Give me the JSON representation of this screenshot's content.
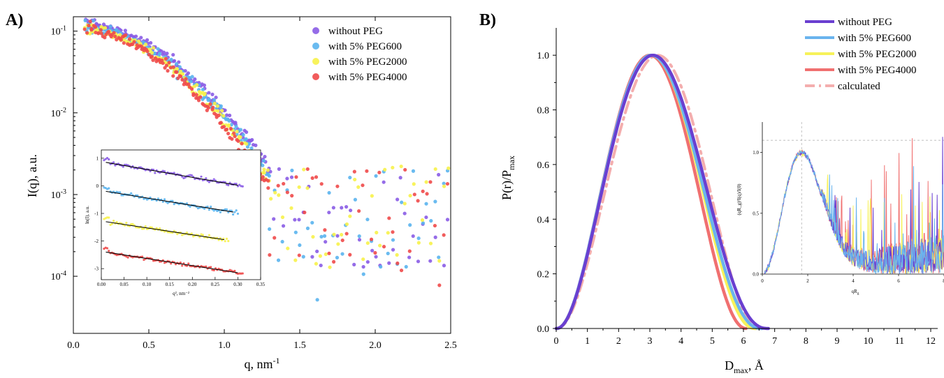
{
  "chart_data": [
    {
      "panel": "A)",
      "type": "scatter",
      "xlabel": "q, nm",
      "xlabel_sup": "-1",
      "ylabel": "I(q), a.u.",
      "xlim": [
        0.0,
        2.5
      ],
      "ylim": [
        2e-05,
        0.15
      ],
      "yscale": "log",
      "xticks": [
        "0.0",
        "0.5",
        "1.0",
        "1.5",
        "2.0",
        "2.5"
      ],
      "yticks": [
        {
          "base": "10",
          "exp": "-1"
        },
        {
          "base": "10",
          "exp": "-2"
        },
        {
          "base": "10",
          "exp": "-3"
        },
        {
          "base": "10",
          "exp": "-4"
        }
      ],
      "legend_position": "top-right",
      "series": [
        {
          "name": "without PEG",
          "color": "#8a5ce6"
        },
        {
          "name": "with 5% PEG600",
          "color": "#5ab4ee"
        },
        {
          "name": "with 5% PEG2000",
          "color": "#f7f24a"
        },
        {
          "name": "with 5% PEG4000",
          "color": "#ef4a4a"
        }
      ],
      "inset": {
        "type": "scatter",
        "xlabel": "q², nm⁻²",
        "ylabel": "ln(I), a.u.",
        "xlim": [
          0.0,
          0.35
        ],
        "ylim": [
          -3.4,
          1.3
        ],
        "xticks": [
          "0.00",
          "0.05",
          "0.10",
          "0.15",
          "0.20",
          "0.25",
          "0.30",
          "0.35"
        ],
        "yticks": [
          "1",
          "0",
          "-1",
          "-2",
          "-3"
        ],
        "fit_lines": [
          {
            "series": "without PEG",
            "x": [
              0.01,
              0.3
            ],
            "y": [
              0.85,
              0.02
            ]
          },
          {
            "series": "with 5% PEG600",
            "x": [
              0.01,
              0.29
            ],
            "y": [
              -0.2,
              -0.95
            ]
          },
          {
            "series": "with 5% PEG2000",
            "x": [
              0.01,
              0.27
            ],
            "y": [
              -1.3,
              -1.95
            ]
          },
          {
            "series": "with 5% PEG4000",
            "x": [
              0.01,
              0.3
            ],
            "y": [
              -2.4,
              -3.15
            ]
          }
        ]
      }
    },
    {
      "panel": "B)",
      "type": "line",
      "xlabel": "D",
      "xlabel_sub": "max",
      "xlabel_unit": ", Å",
      "ylabel": "P(r)/P",
      "ylabel_sub": "max",
      "xlim": [
        0,
        12
      ],
      "ylim": [
        0,
        1.1
      ],
      "xticks": [
        "0",
        "1",
        "2",
        "3",
        "4",
        "5",
        "6",
        "7",
        "8",
        "9",
        "10",
        "11",
        "12"
      ],
      "yticks": [
        "0.0",
        "0.2",
        "0.4",
        "0.6",
        "0.8",
        "1.0"
      ],
      "legend_position": "top-right",
      "series": [
        {
          "name": "without PEG",
          "color": "#6a3fd0",
          "style": "solid",
          "dmax": 6.8,
          "peak": 3.1
        },
        {
          "name": "with 5% PEG600",
          "color": "#6ab4ee",
          "style": "solid",
          "dmax": 6.6,
          "peak": 3.05
        },
        {
          "name": "with 5% PEG2000",
          "color": "#f7f25a",
          "style": "solid",
          "dmax": 6.4,
          "peak": 3.05
        },
        {
          "name": "with 5% PEG4000",
          "color": "#f07070",
          "style": "solid",
          "dmax": 6.1,
          "peak": 3.0
        },
        {
          "name": "calculated",
          "color": "#f4aeae",
          "style": "dashdot",
          "dmax": 6.5,
          "peak": 3.25
        }
      ],
      "inset": {
        "type": "line",
        "xlabel": "qR",
        "xlabel_sub": "g",
        "ylabel": "(qR_g)²I(q)/I(0)",
        "xlim": [
          0,
          8
        ],
        "ylim": [
          0,
          1.25
        ],
        "xticks": [
          "0",
          "2",
          "4",
          "6",
          "8"
        ],
        "yticks": [
          "0.0",
          "0.5",
          "1.0"
        ],
        "guides": {
          "x": 1.73,
          "y": 1.1
        }
      }
    }
  ]
}
